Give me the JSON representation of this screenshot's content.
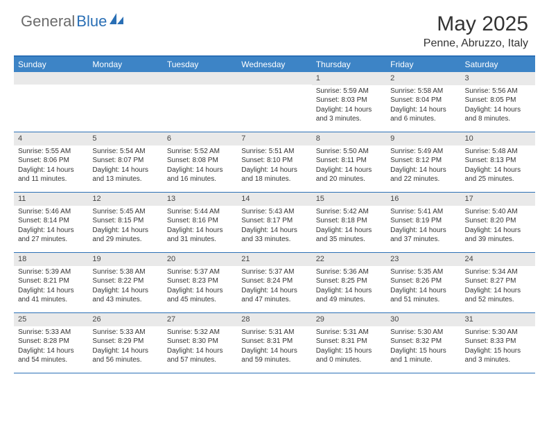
{
  "logo": {
    "text1": "General",
    "text2": "Blue"
  },
  "title": "May 2025",
  "location": "Penne, Abruzzo, Italy",
  "colors": {
    "header_bg": "#3d84c6",
    "border": "#2a6fb5",
    "daynum_bg": "#e9e9e9",
    "text": "#333333",
    "logo_gray": "#6b6b6b",
    "logo_blue": "#2a6fb5"
  },
  "weekdays": [
    "Sunday",
    "Monday",
    "Tuesday",
    "Wednesday",
    "Thursday",
    "Friday",
    "Saturday"
  ],
  "weeks": [
    [
      null,
      null,
      null,
      null,
      {
        "n": "1",
        "sr": "Sunrise: 5:59 AM",
        "ss": "Sunset: 8:03 PM",
        "dl": "Daylight: 14 hours and 3 minutes."
      },
      {
        "n": "2",
        "sr": "Sunrise: 5:58 AM",
        "ss": "Sunset: 8:04 PM",
        "dl": "Daylight: 14 hours and 6 minutes."
      },
      {
        "n": "3",
        "sr": "Sunrise: 5:56 AM",
        "ss": "Sunset: 8:05 PM",
        "dl": "Daylight: 14 hours and 8 minutes."
      }
    ],
    [
      {
        "n": "4",
        "sr": "Sunrise: 5:55 AM",
        "ss": "Sunset: 8:06 PM",
        "dl": "Daylight: 14 hours and 11 minutes."
      },
      {
        "n": "5",
        "sr": "Sunrise: 5:54 AM",
        "ss": "Sunset: 8:07 PM",
        "dl": "Daylight: 14 hours and 13 minutes."
      },
      {
        "n": "6",
        "sr": "Sunrise: 5:52 AM",
        "ss": "Sunset: 8:08 PM",
        "dl": "Daylight: 14 hours and 16 minutes."
      },
      {
        "n": "7",
        "sr": "Sunrise: 5:51 AM",
        "ss": "Sunset: 8:10 PM",
        "dl": "Daylight: 14 hours and 18 minutes."
      },
      {
        "n": "8",
        "sr": "Sunrise: 5:50 AM",
        "ss": "Sunset: 8:11 PM",
        "dl": "Daylight: 14 hours and 20 minutes."
      },
      {
        "n": "9",
        "sr": "Sunrise: 5:49 AM",
        "ss": "Sunset: 8:12 PM",
        "dl": "Daylight: 14 hours and 22 minutes."
      },
      {
        "n": "10",
        "sr": "Sunrise: 5:48 AM",
        "ss": "Sunset: 8:13 PM",
        "dl": "Daylight: 14 hours and 25 minutes."
      }
    ],
    [
      {
        "n": "11",
        "sr": "Sunrise: 5:46 AM",
        "ss": "Sunset: 8:14 PM",
        "dl": "Daylight: 14 hours and 27 minutes."
      },
      {
        "n": "12",
        "sr": "Sunrise: 5:45 AM",
        "ss": "Sunset: 8:15 PM",
        "dl": "Daylight: 14 hours and 29 minutes."
      },
      {
        "n": "13",
        "sr": "Sunrise: 5:44 AM",
        "ss": "Sunset: 8:16 PM",
        "dl": "Daylight: 14 hours and 31 minutes."
      },
      {
        "n": "14",
        "sr": "Sunrise: 5:43 AM",
        "ss": "Sunset: 8:17 PM",
        "dl": "Daylight: 14 hours and 33 minutes."
      },
      {
        "n": "15",
        "sr": "Sunrise: 5:42 AM",
        "ss": "Sunset: 8:18 PM",
        "dl": "Daylight: 14 hours and 35 minutes."
      },
      {
        "n": "16",
        "sr": "Sunrise: 5:41 AM",
        "ss": "Sunset: 8:19 PM",
        "dl": "Daylight: 14 hours and 37 minutes."
      },
      {
        "n": "17",
        "sr": "Sunrise: 5:40 AM",
        "ss": "Sunset: 8:20 PM",
        "dl": "Daylight: 14 hours and 39 minutes."
      }
    ],
    [
      {
        "n": "18",
        "sr": "Sunrise: 5:39 AM",
        "ss": "Sunset: 8:21 PM",
        "dl": "Daylight: 14 hours and 41 minutes."
      },
      {
        "n": "19",
        "sr": "Sunrise: 5:38 AM",
        "ss": "Sunset: 8:22 PM",
        "dl": "Daylight: 14 hours and 43 minutes."
      },
      {
        "n": "20",
        "sr": "Sunrise: 5:37 AM",
        "ss": "Sunset: 8:23 PM",
        "dl": "Daylight: 14 hours and 45 minutes."
      },
      {
        "n": "21",
        "sr": "Sunrise: 5:37 AM",
        "ss": "Sunset: 8:24 PM",
        "dl": "Daylight: 14 hours and 47 minutes."
      },
      {
        "n": "22",
        "sr": "Sunrise: 5:36 AM",
        "ss": "Sunset: 8:25 PM",
        "dl": "Daylight: 14 hours and 49 minutes."
      },
      {
        "n": "23",
        "sr": "Sunrise: 5:35 AM",
        "ss": "Sunset: 8:26 PM",
        "dl": "Daylight: 14 hours and 51 minutes."
      },
      {
        "n": "24",
        "sr": "Sunrise: 5:34 AM",
        "ss": "Sunset: 8:27 PM",
        "dl": "Daylight: 14 hours and 52 minutes."
      }
    ],
    [
      {
        "n": "25",
        "sr": "Sunrise: 5:33 AM",
        "ss": "Sunset: 8:28 PM",
        "dl": "Daylight: 14 hours and 54 minutes."
      },
      {
        "n": "26",
        "sr": "Sunrise: 5:33 AM",
        "ss": "Sunset: 8:29 PM",
        "dl": "Daylight: 14 hours and 56 minutes."
      },
      {
        "n": "27",
        "sr": "Sunrise: 5:32 AM",
        "ss": "Sunset: 8:30 PM",
        "dl": "Daylight: 14 hours and 57 minutes."
      },
      {
        "n": "28",
        "sr": "Sunrise: 5:31 AM",
        "ss": "Sunset: 8:31 PM",
        "dl": "Daylight: 14 hours and 59 minutes."
      },
      {
        "n": "29",
        "sr": "Sunrise: 5:31 AM",
        "ss": "Sunset: 8:31 PM",
        "dl": "Daylight: 15 hours and 0 minutes."
      },
      {
        "n": "30",
        "sr": "Sunrise: 5:30 AM",
        "ss": "Sunset: 8:32 PM",
        "dl": "Daylight: 15 hours and 1 minute."
      },
      {
        "n": "31",
        "sr": "Sunrise: 5:30 AM",
        "ss": "Sunset: 8:33 PM",
        "dl": "Daylight: 15 hours and 3 minutes."
      }
    ]
  ]
}
